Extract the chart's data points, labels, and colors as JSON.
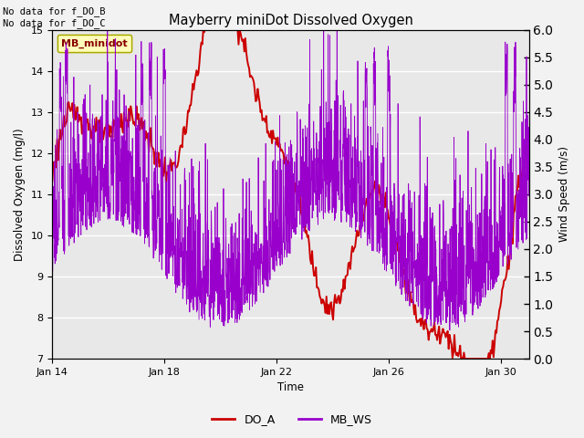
{
  "title": "Mayberry miniDot Dissolved Oxygen",
  "xlabel": "Time",
  "ylabel_left": "Dissolved Oxygen (mg/l)",
  "ylabel_right": "Wind Speed (m/s)",
  "top_text": "No data for f_DO_B\nNo data for f_DO_C",
  "legend_box_label": "MB_minidot",
  "legend_items": [
    "DO_A",
    "MB_WS"
  ],
  "do_color": "#cc0000",
  "ws_color": "#9900cc",
  "background_color": "#e8e8e8",
  "grid_color": "#ffffff",
  "ylim_left": [
    7.0,
    15.0
  ],
  "ylim_right": [
    0.0,
    6.0
  ],
  "yticks_left": [
    7.0,
    8.0,
    9.0,
    10.0,
    11.0,
    12.0,
    13.0,
    14.0,
    15.0
  ],
  "yticks_right": [
    0.0,
    0.5,
    1.0,
    1.5,
    2.0,
    2.5,
    3.0,
    3.5,
    4.0,
    4.5,
    5.0,
    5.5,
    6.0
  ],
  "x_tick_days": [
    14,
    18,
    22,
    26,
    30
  ],
  "xlim": [
    14,
    31
  ],
  "figsize": [
    6.4,
    4.8
  ],
  "dpi": 100
}
